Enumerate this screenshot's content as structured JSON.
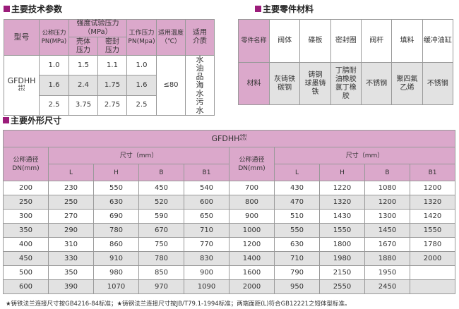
{
  "tech": {
    "title": "主要技术参数",
    "headers": {
      "model": "型号",
      "pn": "公称压力PN(MPa)",
      "test": "强度试验压力（MPa）",
      "shell": "壳体压力",
      "seal": "密封压力",
      "work": "工作压力PN(Mpa)",
      "temp": "适用温度（℃）",
      "medium": "适用介质"
    },
    "model": "GFDHH",
    "model_sup_top": "44H",
    "model_sup_bot": "47X",
    "rows": [
      [
        "1.0",
        "1.5",
        "1.1",
        "1.0"
      ],
      [
        "1.6",
        "2.4",
        "1.75",
        "1.6"
      ],
      [
        "2.5",
        "3.75",
        "2.75",
        "2.5"
      ]
    ],
    "temp": "≤80",
    "medium": "水 油品 海水 污水"
  },
  "parts": {
    "title": "主要零件材料",
    "names": [
      "零件名称",
      "阀体",
      "碟板",
      "密封圈",
      "阀杆",
      "填料",
      "缓冲油缸"
    ],
    "materials": [
      "材料",
      "灰铸铁 碳钢",
      "铸钢 球墨铸铁",
      "丁腈耐 油橡胶 氯丁橡胶",
      "不锈钢",
      "聚四氟 乙烯",
      "不锈钢"
    ]
  },
  "dims": {
    "title": "主要外形尺寸",
    "model": "GFDHH",
    "model_sup_top": "44H",
    "model_sup_bot": "47X",
    "dn_label": "公称通径DN(mm)",
    "size_label": "尺寸（mm）",
    "cols": [
      "L",
      "H",
      "B",
      "B1"
    ],
    "rows": [
      [
        "200",
        "230",
        "550",
        "450",
        "540",
        "700",
        "430",
        "1220",
        "1080",
        "1200"
      ],
      [
        "250",
        "250",
        "630",
        "520",
        "600",
        "800",
        "470",
        "1320",
        "1200",
        "1320"
      ],
      [
        "300",
        "270",
        "690",
        "590",
        "650",
        "900",
        "510",
        "1430",
        "1300",
        "1420"
      ],
      [
        "350",
        "290",
        "780",
        "670",
        "710",
        "1000",
        "550",
        "1550",
        "1450",
        "1550"
      ],
      [
        "400",
        "310",
        "860",
        "750",
        "770",
        "1200",
        "630",
        "1800",
        "1670",
        "1780"
      ],
      [
        "450",
        "330",
        "910",
        "780",
        "830",
        "1400",
        "710",
        "1980",
        "1880",
        "2000"
      ],
      [
        "500",
        "350",
        "980",
        "850",
        "900",
        "1600",
        "790",
        "2150",
        "1950",
        ""
      ],
      [
        "600",
        "390",
        "1070",
        "970",
        "1090",
        "2000",
        "950",
        "2550",
        "2450",
        ""
      ]
    ]
  },
  "note": "★铸铁法兰连接尺寸按GB4216-84标准；★铸钢法兰连接尺寸按JB/T79.1-1994标准；两端面距(L)符合GB12221之短体型标准。"
}
